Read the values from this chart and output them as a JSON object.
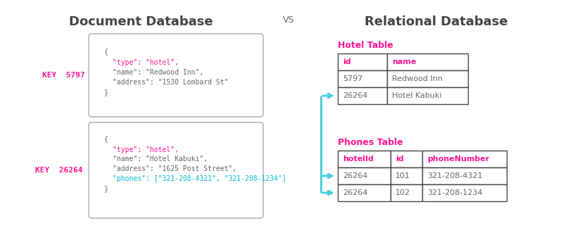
{
  "bg_color": "#ffffff",
  "title_left": "Document Database",
  "title_right": "Relational Database",
  "vs_text": "VS",
  "title_color": "#444444",
  "title_fontsize": 13,
  "vs_fontsize": 9,
  "key_color": "#ff1493",
  "key1_label": "KEY  5797",
  "key2_label": "KEY  26264",
  "doc1_lines": [
    [
      "{",
      "gray"
    ],
    [
      "\"type\": \"hotel\",",
      "magenta"
    ],
    [
      "\"name\": \"Redwood Inn\",",
      "gray"
    ],
    [
      "\"address\": \"1530 Lombard St\"",
      "gray"
    ],
    [
      "}",
      "gray"
    ]
  ],
  "doc2_lines": [
    [
      "{",
      "gray"
    ],
    [
      "\"type\": \"hotel\",",
      "magenta"
    ],
    [
      "\"name\": \"Hotel Kabuki\",",
      "gray"
    ],
    [
      "\"address\": \"1625 Post Street\",",
      "gray"
    ],
    [
      "\"phones\": [\"321-208-4321\", \"321-208-1234\"]",
      "cyan"
    ],
    [
      "}",
      "gray"
    ]
  ],
  "hotel_table_title": "Hotel Table",
  "hotel_table_headers": [
    "id",
    "name"
  ],
  "hotel_table_rows": [
    [
      "5797",
      "Redwood Inn"
    ],
    [
      "26264",
      "Hotel Kabuki"
    ]
  ],
  "phones_table_title": "Phones Table",
  "phones_table_headers": [
    "hotelId",
    "id",
    "phoneNumber"
  ],
  "phones_table_rows": [
    [
      "26264",
      "101",
      "321-208-4321"
    ],
    [
      "26264",
      "102",
      "321-208-1234"
    ]
  ],
  "table_header_color": "#ff1493",
  "table_text_color": "#555555",
  "arrow_color": "#4dd0d8",
  "box_edge_color": "#aaaaaa",
  "magenta": "#ff1493",
  "cyan_color": "#00bcd4",
  "gray_text": "#666666",
  "code_fontsize": 7.0,
  "key_fontsize": 8.0,
  "table_fontsize": 8.0,
  "table_title_fontsize": 9.0
}
